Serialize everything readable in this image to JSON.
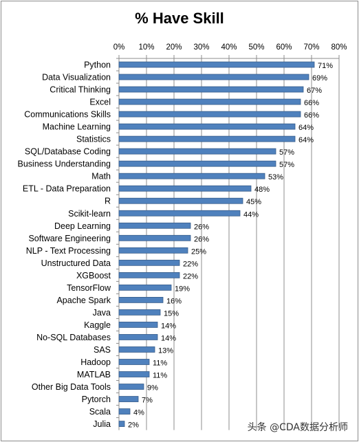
{
  "chart_data": {
    "type": "bar",
    "orientation": "horizontal",
    "title": "% Have Skill",
    "x_axis_position": "top",
    "xlim": [
      0,
      80
    ],
    "x_ticks": [
      "0%",
      "10%",
      "20%",
      "30%",
      "40%",
      "50%",
      "60%",
      "70%",
      "80%"
    ],
    "grid": true,
    "bar_color": "#4f81bd",
    "categories": [
      "Python",
      "Data Visualization",
      "Critical Thinking",
      "Excel",
      "Communications Skills",
      "Machine Learning",
      "Statistics",
      "SQL/Database Coding",
      "Business Understanding",
      "Math",
      "ETL - Data Preparation",
      "R",
      "Scikit-learn",
      "Deep Learning",
      "Software Engineering",
      "NLP - Text Processing",
      "Unstructured Data",
      "XGBoost",
      "TensorFlow",
      "Apache Spark",
      "Java",
      "Kaggle",
      "No-SQL Databases",
      "SAS",
      "Hadoop",
      "MATLAB",
      "Other Big Data Tools",
      "Pytorch",
      "Scala",
      "Julia"
    ],
    "values": [
      71,
      69,
      67,
      66,
      66,
      64,
      64,
      57,
      57,
      53,
      48,
      45,
      44,
      26,
      26,
      25,
      22,
      22,
      19,
      16,
      15,
      14,
      14,
      13,
      11,
      11,
      9,
      7,
      4,
      2
    ],
    "data_labels": [
      "71%",
      "69%",
      "67%",
      "66%",
      "66%",
      "64%",
      "64%",
      "57%",
      "57%",
      "53%",
      "48%",
      "45%",
      "44%",
      "26%",
      "26%",
      "25%",
      "22%",
      "22%",
      "19%",
      "16%",
      "15%",
      "14%",
      "14%",
      "13%",
      "11%",
      "11%",
      "9%",
      "7%",
      "4%",
      "2%"
    ]
  },
  "watermark": "头条 @CDA数据分析师"
}
